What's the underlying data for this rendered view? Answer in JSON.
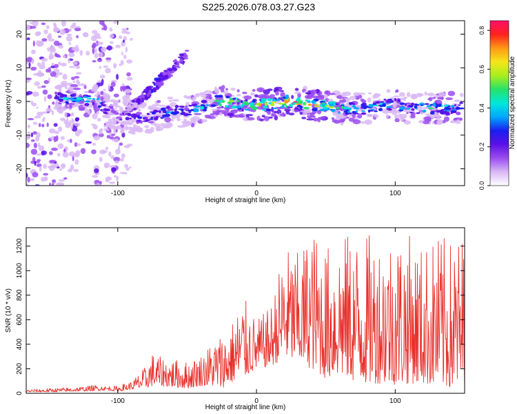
{
  "title": "S225.2026.078.03.27.G23",
  "colors": {
    "axis": "#000000",
    "snr_line": "#e8302a",
    "colormap": [
      "#ffffff",
      "#d9b8f5",
      "#9b4cf0",
      "#5a10e8",
      "#1a1ef0",
      "#00a8ff",
      "#00e8d8",
      "#26e26a",
      "#a8ee1c",
      "#f5e61a",
      "#ff9a12",
      "#ff2020",
      "#ff1068"
    ]
  },
  "chart_data": [
    {
      "type": "heatmap",
      "title": "",
      "xlabel": "Height of straight line (km)",
      "ylabel": "Frequency (Hz)",
      "xlim": [
        -166,
        150
      ],
      "ylim": [
        -25,
        24
      ],
      "xticks": [
        -100,
        0,
        100
      ],
      "xtick_labels": [
        "-100",
        "0",
        "100"
      ],
      "yticks": [
        -20,
        -10,
        0,
        10,
        20
      ],
      "ytick_labels": [
        "-20",
        "-10",
        "0",
        "10",
        "20"
      ],
      "colorbar": {
        "label": "Normalized spectral amplitude",
        "range": [
          0.0,
          0.85
        ],
        "ticks": [
          0.0,
          0.2,
          0.4,
          0.6,
          0.8
        ],
        "tick_labels": [
          "0.0",
          "0.2",
          "0.4",
          "0.6",
          "0.8"
        ],
        "placement": "right"
      },
      "main_ridge": {
        "x": [
          -145,
          -130,
          -115,
          -105,
          -100,
          -90,
          -80,
          -70,
          -60,
          -50,
          -40,
          -30,
          -20,
          -10,
          0,
          10,
          20,
          30,
          40,
          50,
          60,
          70,
          80,
          90,
          100,
          110,
          120,
          130,
          140,
          148
        ],
        "freq": [
          1,
          1,
          0,
          -3,
          -5,
          -5,
          -5,
          -4,
          -3,
          -3,
          -2,
          0,
          0,
          -1,
          -1,
          -1,
          0,
          0,
          -1,
          -1,
          -2,
          -2,
          -2,
          -1,
          -1,
          -2,
          -2,
          -2,
          -2,
          -2
        ],
        "amplitude": [
          0.35,
          0.45,
          0.5,
          0.2,
          0.25,
          0.3,
          0.3,
          0.4,
          0.35,
          0.35,
          0.45,
          0.55,
          0.65,
          0.6,
          0.7,
          0.75,
          0.78,
          0.78,
          0.7,
          0.65,
          0.55,
          0.45,
          0.45,
          0.45,
          0.45,
          0.4,
          0.45,
          0.5,
          0.45,
          0.35
        ]
      },
      "diagonal_streak": {
        "x": [
          -95,
          -85,
          -75,
          -65,
          -55,
          -50
        ],
        "freq": [
          -3,
          0,
          4,
          8,
          12,
          14
        ],
        "amplitude": [
          0.15,
          0.2,
          0.25,
          0.25,
          0.2,
          0.15
        ]
      },
      "noise_region": {
        "x_range": [
          -166,
          -90
        ],
        "freq_range": [
          -25,
          24
        ]
      }
    },
    {
      "type": "line",
      "title": "",
      "xlabel": "Height of straight line (km)",
      "ylabel": "SNR (10 * v/v)",
      "xlim": [
        -166,
        150
      ],
      "ylim": [
        0,
        1350
      ],
      "xticks": [
        -100,
        0,
        100
      ],
      "xtick_labels": [
        "-100",
        "0",
        "100"
      ],
      "yticks": [
        0,
        200,
        400,
        600,
        800,
        1000,
        1200
      ],
      "ytick_labels": [
        "0",
        "200",
        "400",
        "600",
        "800",
        "1000",
        "1200"
      ],
      "grid": false,
      "legend": "none",
      "series": [
        {
          "x": [
            -166,
            -150,
            -130,
            -115,
            -110,
            -100,
            -90,
            -80,
            -75,
            -70,
            -60,
            -50,
            -40,
            -30,
            -25,
            -20,
            -10,
            0,
            10,
            20,
            30,
            40,
            50,
            60,
            70,
            80,
            90,
            100,
            110,
            120,
            130,
            140,
            150
          ],
          "y_low": [
            10,
            10,
            15,
            20,
            25,
            15,
            30,
            40,
            60,
            60,
            50,
            40,
            60,
            60,
            40,
            80,
            120,
            200,
            220,
            280,
            250,
            200,
            120,
            150,
            100,
            80,
            80,
            70,
            80,
            80,
            60,
            40,
            50
          ],
          "y_high": [
            30,
            40,
            50,
            70,
            60,
            60,
            100,
            220,
            330,
            300,
            280,
            260,
            320,
            450,
            500,
            520,
            800,
            600,
            700,
            1200,
            1150,
            1350,
            1200,
            1300,
            1300,
            1300,
            1300,
            1350,
            1300,
            1200,
            1300,
            1250,
            1320
          ]
        }
      ]
    }
  ]
}
